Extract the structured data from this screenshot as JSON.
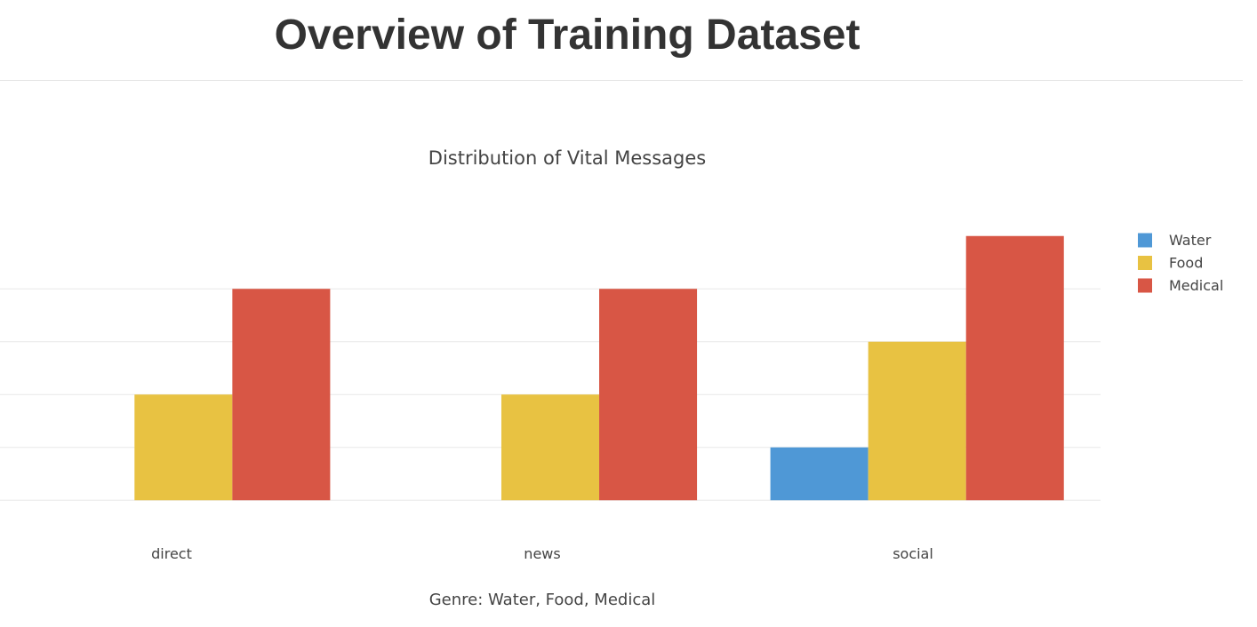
{
  "header": {
    "title": "Overview of Training Dataset"
  },
  "chart_data": {
    "type": "bar",
    "title": "Distribution of Vital Messages",
    "xlabel": "Genre: Water, Food, Medical",
    "ylabel": "",
    "categories": [
      "direct",
      "news",
      "social"
    ],
    "series": [
      {
        "name": "Water",
        "color": "#4f98d6",
        "values": [
          0,
          0,
          1
        ]
      },
      {
        "name": "Food",
        "color": "#e8c242",
        "values": [
          2,
          2,
          3
        ]
      },
      {
        "name": "Medical",
        "color": "#d85645",
        "values": [
          4,
          4,
          5
        ]
      }
    ],
    "ylim": [
      -0.5,
      5.5
    ],
    "gridlines": [
      0,
      1,
      2,
      3,
      4
    ],
    "y_tick_labels_visible": false,
    "grid": true,
    "legend_position": "top-right"
  }
}
